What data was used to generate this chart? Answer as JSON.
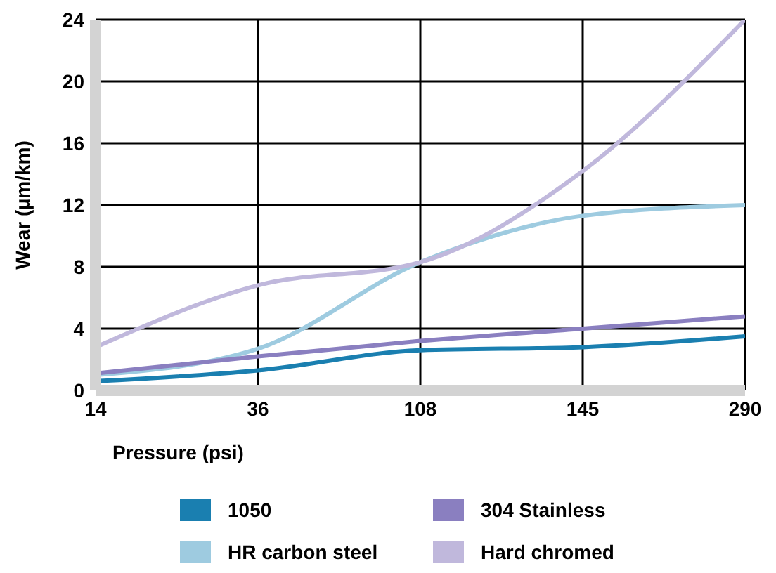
{
  "chart_data": {
    "type": "line",
    "xlabel": "Pressure (psi)",
    "ylabel": "Wear (µm/km)",
    "categories": [
      "14",
      "36",
      "108",
      "145",
      "290"
    ],
    "series": [
      {
        "name": "1050",
        "color": "#1a7fb0",
        "values": [
          0.6,
          1.3,
          2.6,
          2.8,
          3.5
        ]
      },
      {
        "name": "HR carbon steel",
        "color": "#9ecbe0",
        "values": [
          1.0,
          2.7,
          8.3,
          11.3,
          12.0
        ]
      },
      {
        "name": "304 Stainless",
        "color": "#8a7fc0",
        "values": [
          1.1,
          2.2,
          3.2,
          4.0,
          4.8
        ]
      },
      {
        "name": "Hard chromed",
        "color": "#c0b8dc",
        "values": [
          2.8,
          6.8,
          8.3,
          14.2,
          24
        ]
      }
    ],
    "ylim": [
      0,
      24
    ],
    "yticks": [
      0,
      4,
      8,
      12,
      16,
      20,
      24
    ],
    "grid": true,
    "legend": "bottom",
    "marker": "none",
    "line_style": "solid"
  }
}
